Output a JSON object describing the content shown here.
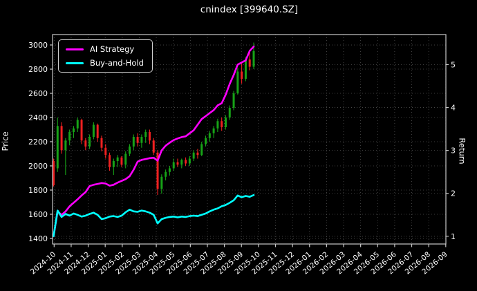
{
  "window": {
    "title": "cnindex [399640.SZ]"
  },
  "chart_data": {
    "type": "candlestick-with-lines",
    "title": "cnindex [399640.SZ]",
    "background_color": "#000000",
    "text_color": "#ffffff",
    "grid": {
      "visible": true,
      "style": "dotted",
      "color": "#b3b3b3"
    },
    "left_axis": {
      "label": "Price",
      "ticks": [
        1400,
        1600,
        1800,
        2000,
        2200,
        2400,
        2600,
        2800,
        3000
      ],
      "min": 1354,
      "max": 3086
    },
    "right_axis": {
      "label": "Return",
      "ticks": [
        1,
        2,
        3,
        4,
        5
      ],
      "min": 0.82,
      "max": 5.7
    },
    "x_axis": {
      "tick_labels": [
        "2024-10",
        "2024-11",
        "2024-12",
        "2025-01",
        "2025-02",
        "2025-03",
        "2025-04",
        "2025-05",
        "2025-06",
        "2025-07",
        "2025-08",
        "2025-09",
        "2025-10",
        "2025-11",
        "2025-12",
        "2026-01",
        "2026-02",
        "2026-03",
        "2026-04",
        "2026-05",
        "2026-06",
        "2026-07",
        "2026-08",
        "2026-09"
      ],
      "label_rotation_deg": -40
    },
    "legend": {
      "position": "upper-left",
      "items": [
        {
          "label": "AI Strategy",
          "color": "#ff00ff"
        },
        {
          "label": "Buy-and-Hold",
          "color": "#00ffff"
        }
      ]
    },
    "candles": {
      "up_color": "#17a317",
      "down_color": "#ef2020",
      "dates": [
        "2024-09-30",
        "2024-10-07",
        "2024-10-14",
        "2024-10-21",
        "2024-10-28",
        "2024-11-04",
        "2024-11-11",
        "2024-11-18",
        "2024-11-25",
        "2024-12-02",
        "2024-12-09",
        "2024-12-16",
        "2024-12-23",
        "2024-12-30",
        "2025-01-06",
        "2025-01-13",
        "2025-01-20",
        "2025-01-27",
        "2025-02-03",
        "2025-02-10",
        "2025-02-17",
        "2025-02-24",
        "2025-03-03",
        "2025-03-10",
        "2025-03-17",
        "2025-03-24",
        "2025-03-31",
        "2025-04-07",
        "2025-04-14",
        "2025-04-21",
        "2025-04-28",
        "2025-05-05",
        "2025-05-12",
        "2025-05-19",
        "2025-05-26",
        "2025-06-02",
        "2025-06-09",
        "2025-06-16",
        "2025-06-23",
        "2025-06-30",
        "2025-07-07",
        "2025-07-14",
        "2025-07-21",
        "2025-07-28",
        "2025-08-04",
        "2025-08-11",
        "2025-08-18",
        "2025-08-25",
        "2025-09-01",
        "2025-09-08",
        "2025-09-15"
      ],
      "open": [
        2040,
        1980,
        2330,
        2130,
        2210,
        2280,
        2310,
        2380,
        2210,
        2160,
        2240,
        2340,
        2230,
        2150,
        2090,
        1990,
        2040,
        2070,
        2010,
        2100,
        2160,
        2240,
        2190,
        2240,
        2280,
        2210,
        2110,
        1810,
        1910,
        1950,
        1980,
        2030,
        2010,
        2050,
        2020,
        2060,
        2110,
        2090,
        2180,
        2230,
        2270,
        2310,
        2370,
        2320,
        2400,
        2480,
        2600,
        2780,
        2720,
        2880,
        2820
      ],
      "high": [
        2060,
        2400,
        2360,
        2230,
        2300,
        2330,
        2400,
        2390,
        2230,
        2260,
        2360,
        2350,
        2250,
        2180,
        2110,
        2060,
        2090,
        2080,
        2120,
        2180,
        2260,
        2270,
        2260,
        2300,
        2300,
        2230,
        2130,
        1930,
        1970,
        2000,
        2060,
        2060,
        2060,
        2070,
        2080,
        2130,
        2140,
        2200,
        2250,
        2290,
        2330,
        2390,
        2400,
        2420,
        2500,
        2620,
        2810,
        2850,
        2900,
        2960,
        3020
      ],
      "low": [
        1830,
        1950,
        2100,
        1925,
        2170,
        2230,
        2280,
        2180,
        2130,
        2140,
        2220,
        2200,
        2120,
        2060,
        1960,
        1925,
        1990,
        1990,
        1980,
        2080,
        2130,
        2160,
        2150,
        2190,
        2180,
        2090,
        1760,
        1770,
        1880,
        1920,
        1960,
        1990,
        1980,
        2000,
        2000,
        2040,
        2060,
        2080,
        2160,
        2200,
        2230,
        2280,
        2290,
        2300,
        2380,
        2460,
        2590,
        2680,
        2700,
        2790,
        2800
      ],
      "close": [
        1840,
        2330,
        2130,
        2210,
        2280,
        2310,
        2380,
        2210,
        2160,
        2240,
        2340,
        2230,
        2150,
        2090,
        1990,
        2040,
        2070,
        2010,
        2100,
        2160,
        2240,
        2190,
        2240,
        2280,
        2210,
        2110,
        1810,
        1910,
        1950,
        1980,
        2030,
        2010,
        2050,
        2020,
        2060,
        2110,
        2090,
        2180,
        2230,
        2270,
        2310,
        2370,
        2320,
        2400,
        2480,
        2600,
        2780,
        2720,
        2880,
        2820,
        2950
      ]
    },
    "series": [
      {
        "name": "AI Strategy",
        "axis": "right",
        "color": "#ff00ff",
        "values": [
          1.0,
          1.58,
          1.5,
          1.58,
          1.7,
          1.78,
          1.86,
          1.95,
          2.03,
          2.17,
          2.2,
          2.22,
          2.24,
          2.23,
          2.18,
          2.2,
          2.25,
          2.29,
          2.33,
          2.4,
          2.55,
          2.74,
          2.78,
          2.8,
          2.82,
          2.83,
          2.76,
          3.0,
          3.11,
          3.18,
          3.24,
          3.28,
          3.31,
          3.33,
          3.4,
          3.47,
          3.6,
          3.73,
          3.8,
          3.87,
          3.94,
          4.05,
          4.1,
          4.3,
          4.55,
          4.76,
          5.0,
          5.05,
          5.1,
          5.32,
          5.42
        ]
      },
      {
        "name": "Buy-and-Hold",
        "axis": "right",
        "color": "#00ffff",
        "values": [
          1.0,
          1.6,
          1.45,
          1.52,
          1.48,
          1.53,
          1.5,
          1.46,
          1.48,
          1.52,
          1.55,
          1.5,
          1.4,
          1.42,
          1.46,
          1.47,
          1.45,
          1.48,
          1.56,
          1.62,
          1.58,
          1.57,
          1.6,
          1.58,
          1.55,
          1.5,
          1.3,
          1.4,
          1.43,
          1.45,
          1.46,
          1.44,
          1.46,
          1.45,
          1.47,
          1.48,
          1.47,
          1.5,
          1.53,
          1.58,
          1.62,
          1.65,
          1.7,
          1.73,
          1.78,
          1.84,
          1.95,
          1.91,
          1.94,
          1.92,
          1.96
        ]
      }
    ]
  }
}
